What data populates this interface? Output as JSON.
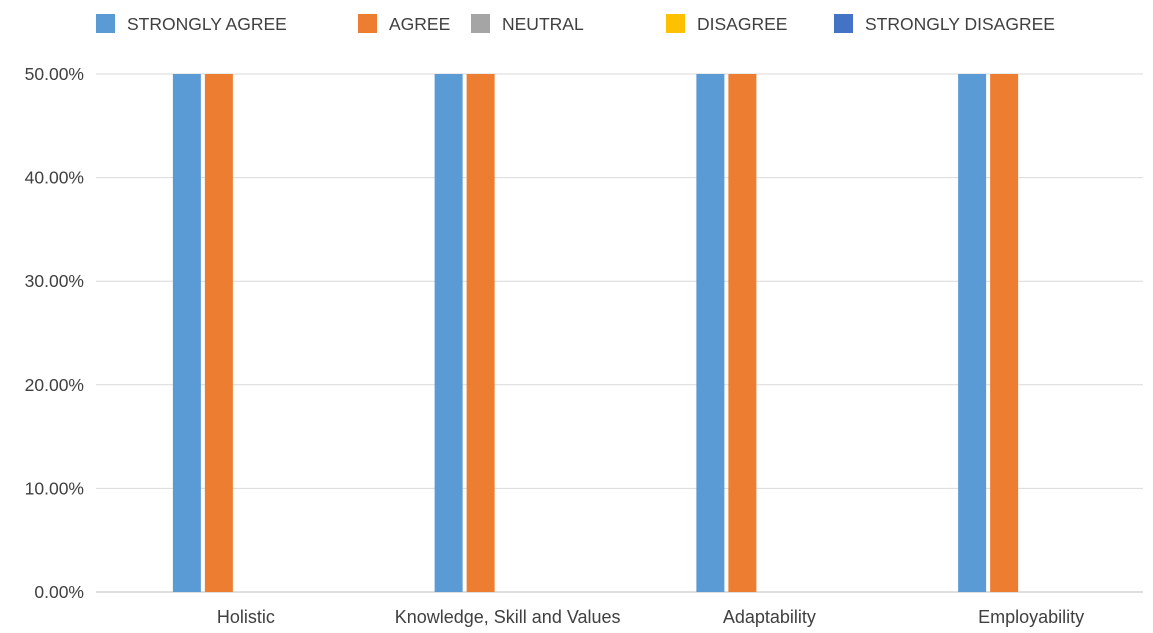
{
  "chart_data": {
    "type": "bar",
    "categories": [
      "Holistic",
      "Knowledge, Skill and Values",
      "Adaptability",
      "Employability"
    ],
    "series": [
      {
        "name": "STRONGLY AGREE",
        "values": [
          50,
          50,
          50,
          50
        ],
        "color": "#5b9bd5"
      },
      {
        "name": "AGREE",
        "values": [
          50,
          50,
          50,
          50
        ],
        "color": "#ed7d31"
      },
      {
        "name": "NEUTRAL",
        "values": [
          0,
          0,
          0,
          0
        ],
        "color": "#a5a5a5"
      },
      {
        "name": "DISAGREE",
        "values": [
          0,
          0,
          0,
          0
        ],
        "color": "#ffc000"
      },
      {
        "name": "STRONGLY DISAGREE",
        "values": [
          0,
          0,
          0,
          0
        ],
        "color": "#4472c4"
      }
    ],
    "ylim": [
      0,
      50
    ],
    "yticks": [
      "0.00%",
      "10.00%",
      "20.00%",
      "30.00%",
      "40.00%",
      "50.00%"
    ],
    "grid": true,
    "legend_position": "top"
  }
}
